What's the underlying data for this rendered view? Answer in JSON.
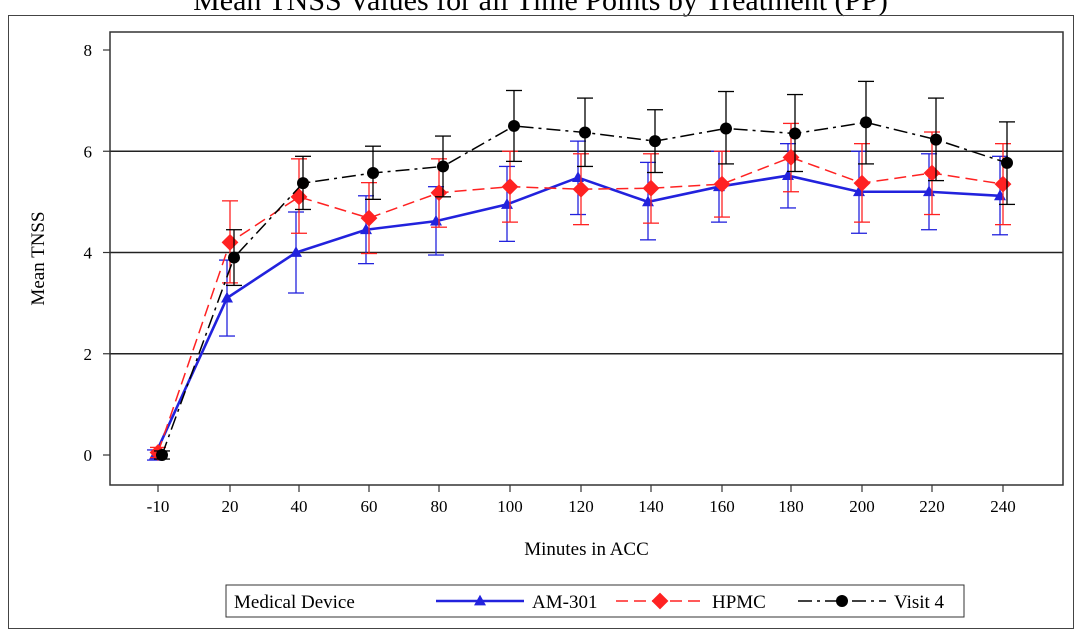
{
  "chart_data": {
    "type": "line",
    "title": "Mean TNSS Values for all Time Points by Treatment (PP)",
    "xlabel": "Minutes in ACC",
    "ylabel": "Mean TNSS",
    "x": [
      -10,
      20,
      40,
      60,
      80,
      100,
      120,
      140,
      160,
      180,
      200,
      220,
      240
    ],
    "x_tick_labels": [
      "-10",
      "20",
      "40",
      "60",
      "80",
      "100",
      "120",
      "140",
      "160",
      "180",
      "200",
      "220",
      "240"
    ],
    "ylim": [
      0,
      8
    ],
    "y_ticks": [
      0,
      2,
      4,
      6,
      8
    ],
    "gridlines_y": [
      2,
      4,
      6
    ],
    "legend": {
      "title": "Medical Device",
      "position": "bottom"
    },
    "series": [
      {
        "name": "AM-301",
        "color": "#2222dd",
        "marker": "triangle",
        "line_style": "solid",
        "values": [
          0.0,
          3.1,
          4.0,
          4.45,
          4.62,
          4.95,
          5.48,
          5.0,
          5.3,
          5.52,
          5.2,
          5.2,
          5.12
        ],
        "error_low": [
          -0.1,
          2.35,
          3.2,
          3.78,
          3.95,
          4.22,
          4.75,
          4.25,
          4.6,
          4.88,
          4.38,
          4.45,
          4.35
        ],
        "error_high": [
          0.1,
          3.85,
          4.8,
          5.12,
          5.3,
          5.7,
          6.2,
          5.78,
          6.0,
          6.15,
          6.0,
          5.95,
          5.9
        ]
      },
      {
        "name": "HPMC",
        "color": "#ff2222",
        "marker": "diamond",
        "line_style": "dashed",
        "values": [
          0.05,
          4.2,
          5.1,
          4.68,
          5.18,
          5.3,
          5.25,
          5.27,
          5.35,
          5.88,
          5.37,
          5.57,
          5.35
        ],
        "error_low": [
          -0.05,
          3.4,
          4.38,
          3.98,
          4.5,
          4.6,
          4.55,
          4.58,
          4.7,
          5.2,
          4.6,
          4.75,
          4.55
        ],
        "error_high": [
          0.15,
          5.02,
          5.85,
          5.38,
          5.85,
          6.0,
          5.95,
          5.95,
          6.0,
          6.55,
          6.15,
          6.38,
          6.15
        ]
      },
      {
        "name": "Visit 4",
        "color": "#000000",
        "marker": "circle",
        "line_style": "dashdot",
        "values": [
          0.0,
          3.9,
          5.37,
          5.57,
          5.7,
          6.5,
          6.37,
          6.2,
          6.45,
          6.35,
          6.57,
          6.23,
          5.77
        ],
        "error_low": [
          -0.08,
          3.35,
          4.85,
          5.05,
          5.1,
          5.8,
          5.7,
          5.58,
          5.75,
          5.6,
          5.75,
          5.42,
          4.95
        ],
        "error_high": [
          0.08,
          4.45,
          5.9,
          6.1,
          6.3,
          7.2,
          7.05,
          6.82,
          7.18,
          7.12,
          7.38,
          7.05,
          6.58
        ]
      }
    ]
  }
}
